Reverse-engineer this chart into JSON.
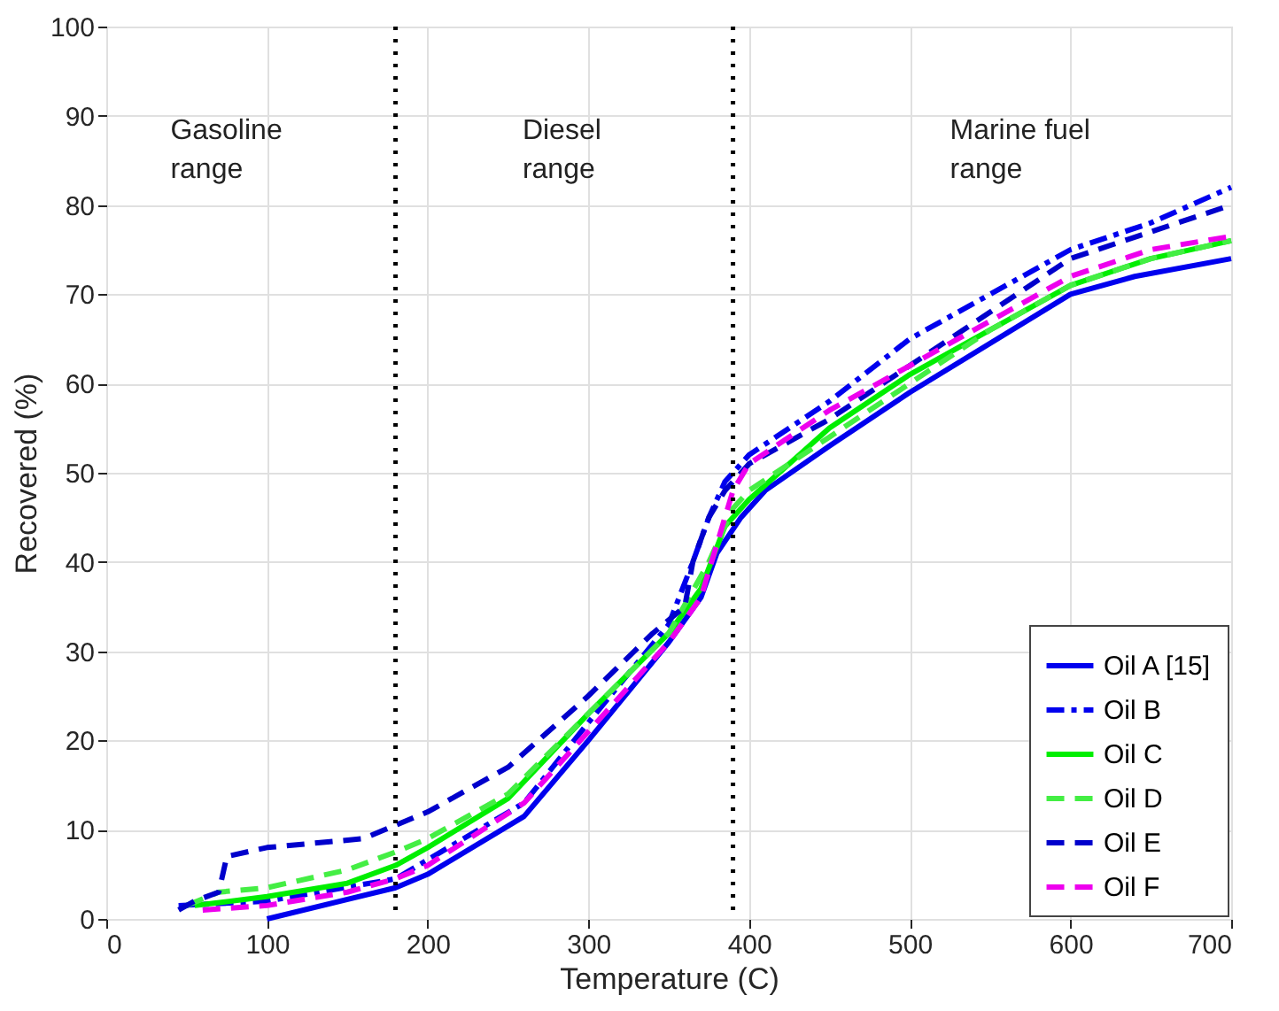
{
  "chart_data": {
    "type": "line",
    "xlabel": "Temperature (C)",
    "ylabel": "Recovered (%)",
    "xlim": [
      0,
      700
    ],
    "xticks": [
      0,
      100,
      200,
      300,
      400,
      500,
      600,
      700
    ],
    "ylim": [
      0,
      100
    ],
    "yticks": [
      0,
      10,
      20,
      30,
      40,
      50,
      60,
      70,
      80,
      90,
      100
    ],
    "grid": true,
    "legend": "bottom right",
    "marker": "none",
    "series": [
      {
        "name": "Oil A [15]",
        "color": "#0000ee",
        "line_style": "solid",
        "x": [
          100,
          180,
          200,
          260,
          300,
          350,
          370,
          380,
          395,
          410,
          450,
          500,
          600,
          640,
          700
        ],
        "values": [
          0,
          3.5,
          5,
          11.5,
          20,
          31,
          36,
          41,
          45,
          48,
          53,
          59,
          70,
          72,
          74
        ]
      },
      {
        "name": "Oil B",
        "color": "#0000ee",
        "line_style": "dashdot",
        "x": [
          45,
          100,
          180,
          260,
          300,
          350,
          365,
          375,
          385,
          400,
          450,
          500,
          550,
          600,
          650,
          700
        ],
        "values": [
          1.5,
          2,
          4.5,
          13,
          22,
          33,
          40,
          45,
          49,
          52,
          58,
          65,
          70,
          75,
          78,
          82
        ]
      },
      {
        "name": "Oil C",
        "color": "#00ee00",
        "line_style": "solid",
        "x": [
          55,
          100,
          150,
          180,
          200,
          250,
          300,
          350,
          370,
          385,
          400,
          450,
          500,
          550,
          600,
          650,
          700
        ],
        "values": [
          1.5,
          2.5,
          4,
          6,
          8,
          13.5,
          23,
          32,
          37,
          44,
          47,
          55,
          61,
          66,
          71,
          74,
          76
        ]
      },
      {
        "name": "Oil D",
        "color": "#44ee44",
        "line_style": "dashed",
        "x": [
          50,
          70,
          100,
          150,
          180,
          200,
          250,
          300,
          350,
          375,
          390,
          400,
          450,
          500,
          550,
          600,
          650,
          700
        ],
        "values": [
          1.5,
          3,
          3.5,
          5.5,
          7.5,
          9,
          14,
          23,
          32,
          40,
          46,
          48,
          54,
          60,
          66,
          71,
          74,
          76
        ]
      },
      {
        "name": "Oil E",
        "color": "#0000cc",
        "line_style": "dashed",
        "x": [
          45,
          55,
          70,
          75,
          100,
          160,
          180,
          200,
          250,
          300,
          340,
          360,
          365,
          375,
          385,
          400,
          450,
          500,
          550,
          600,
          650,
          700
        ],
        "values": [
          1,
          2,
          3,
          7,
          8,
          9,
          10.5,
          12,
          17,
          25,
          32,
          35,
          40,
          45,
          48,
          51,
          56,
          62,
          68,
          74,
          77,
          80
        ]
      },
      {
        "name": "Oil F",
        "color": "#ee00ee",
        "line_style": "dashed",
        "x": [
          60,
          100,
          150,
          180,
          200,
          260,
          300,
          350,
          370,
          380,
          390,
          400,
          450,
          500,
          550,
          600,
          650,
          700
        ],
        "values": [
          1,
          1.5,
          3,
          4.5,
          6,
          13,
          21,
          31,
          36,
          42,
          48,
          51,
          57,
          62,
          67,
          72,
          75,
          76.5
        ]
      }
    ],
    "ref_lines": [
      {
        "axis": "x",
        "value": 180,
        "color": "#000000",
        "line_style": "dotted"
      },
      {
        "axis": "x",
        "value": 390,
        "color": "#000000",
        "line_style": "dotted"
      }
    ],
    "annotations": [
      "Gasoline\nrange",
      "Diesel\nrange",
      "Marine fuel\nrange"
    ]
  }
}
